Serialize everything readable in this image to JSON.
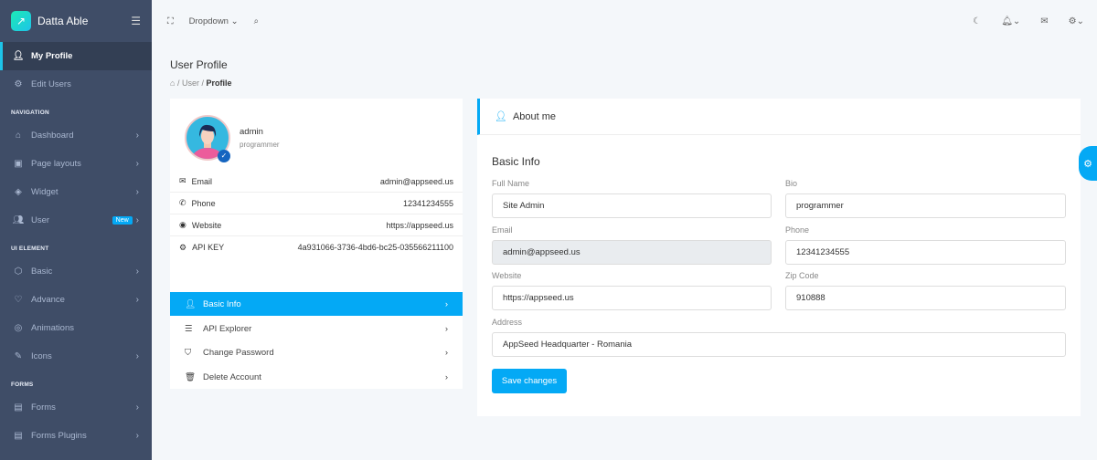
{
  "brand": {
    "name": "Datta Able"
  },
  "sidebar": {
    "top": [
      {
        "label": "My Profile",
        "icon": "user-icon"
      },
      {
        "label": "Edit Users",
        "icon": "gear-icon"
      }
    ],
    "navigation_caption": "NAVIGATION",
    "navigation": [
      {
        "label": "Dashboard"
      },
      {
        "label": "Page layouts"
      },
      {
        "label": "Widget"
      },
      {
        "label": "User",
        "badge": "New"
      }
    ],
    "ui_caption": "UI ELEMENT",
    "ui": [
      {
        "label": "Basic"
      },
      {
        "label": "Advance"
      },
      {
        "label": "Animations"
      },
      {
        "label": "Icons"
      }
    ],
    "forms_caption": "FORMS",
    "forms": [
      {
        "label": "Forms"
      },
      {
        "label": "Forms Plugins"
      }
    ]
  },
  "topbar": {
    "dropdown": "Dropdown"
  },
  "page": {
    "title": "User Profile",
    "breadcrumb": [
      "User",
      "Profile"
    ]
  },
  "profile": {
    "name": "admin",
    "role": "programmer",
    "info": [
      {
        "key": "Email",
        "value": "admin@appseed.us"
      },
      {
        "key": "Phone",
        "value": "12341234555"
      },
      {
        "key": "Website",
        "value": "https://appseed.us"
      },
      {
        "key": "API KEY",
        "value": "4a931066-3736-4bd6-bc25-035566211100"
      }
    ],
    "menu": [
      {
        "label": "Basic Info"
      },
      {
        "label": "API Explorer"
      },
      {
        "label": "Change Password"
      },
      {
        "label": "Delete Account"
      }
    ]
  },
  "about": {
    "title": "About me",
    "section": "Basic Info",
    "fields": {
      "full_name": {
        "label": "Full Name",
        "value": "Site Admin"
      },
      "bio": {
        "label": "Bio",
        "value": "programmer"
      },
      "email": {
        "label": "Email",
        "value": "admin@appseed.us"
      },
      "phone": {
        "label": "Phone",
        "value": "12341234555"
      },
      "website": {
        "label": "Website",
        "value": "https://appseed.us"
      },
      "zip": {
        "label": "Zip Code",
        "value": "910888"
      },
      "address": {
        "label": "Address",
        "value": "AppSeed Headquarter - Romania"
      }
    },
    "save": "Save changes"
  },
  "colors": {
    "accent": "#04a9f5",
    "sidebar": "#3f4d67"
  }
}
